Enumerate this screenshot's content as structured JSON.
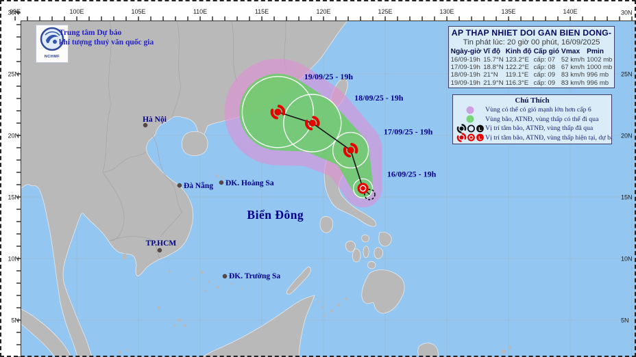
{
  "header": {
    "org_line1": "Trung tâm Dự báo",
    "org_line2": "khí tượng thuỷ văn quốc gia",
    "logo_caption": "NCHMF"
  },
  "info_box": {
    "title": "AP THAP NHIET DOI GAN BIEN DONG-",
    "issued_line": "Tin phát lúc: 20 giờ 00 phút, 16/09/2025",
    "columns": [
      "Ngày-giờ",
      "Vĩ độ",
      "Kinh độ",
      "Cấp gió",
      "Vmax",
      "Pmin"
    ],
    "rows": [
      [
        "16/09-19h",
        "15.7°N",
        "123.2°E",
        "cấp: 07",
        "52 km/h",
        "1002 mb"
      ],
      [
        "17/09-19h",
        "18.8°N",
        "122.2°E",
        "cấp: 08",
        "67 km/h",
        "1000 mb"
      ],
      [
        "18/09-19h",
        "21°N",
        "119.1°E",
        "cấp: 09",
        "83 km/h",
        "996 mb"
      ],
      [
        "19/09-19h",
        "21.9°N",
        "116.3°E",
        "cấp: 09",
        "83 km/h",
        "996 mb"
      ]
    ]
  },
  "legend": {
    "title": "Chú Thích",
    "items": [
      {
        "symbol": "purple-zone",
        "label": "Vùng có thể có gió mạnh lớn hơn cấp 6"
      },
      {
        "symbol": "green-zone",
        "label": "Vùng bão, ATNĐ, vùng thấp có thể đi qua"
      },
      {
        "symbol": "past-symbols",
        "label": "Vị trí tâm bão, ATNĐ, vùng thấp đã qua"
      },
      {
        "symbol": "current-symbols",
        "label": "Vị trí tâm bão, ATNĐ, vùng thấp hiện tại, dự báo"
      }
    ]
  },
  "map": {
    "sea_label": {
      "text": "Biển Đông",
      "lon": 116.1,
      "lat": 13.45
    },
    "places": [
      {
        "name": "Hà Nội",
        "lon": 105.56,
        "lat": 20.83
      },
      {
        "name": "Đà Nẵng",
        "lon": 108.33,
        "lat": 15.94
      },
      {
        "name": "TP.HCM",
        "lon": 106.72,
        "lat": 10.67
      },
      {
        "name": "ĐK. Hoàng Sa",
        "lon": 111.72,
        "lat": 16.17
      },
      {
        "name": "ĐK. Trường Sa",
        "lon": 112.0,
        "lat": 8.56
      }
    ],
    "axis": {
      "longitudes": [
        {
          "v": 95,
          "t": "95E"
        },
        {
          "v": 100,
          "t": "100E"
        },
        {
          "v": 105,
          "t": "105E"
        },
        {
          "v": 110,
          "t": "110E"
        },
        {
          "v": 115,
          "t": "115E"
        },
        {
          "v": 120,
          "t": "120E"
        },
        {
          "v": 125,
          "t": "125E"
        },
        {
          "v": 130,
          "t": "130E"
        },
        {
          "v": 135,
          "t": "135E"
        },
        {
          "v": 140,
          "t": "140E"
        }
      ],
      "latitudes": [
        {
          "v": 30,
          "t": "30N"
        },
        {
          "v": 25,
          "t": "25N"
        },
        {
          "v": 20,
          "t": "20N"
        },
        {
          "v": 15,
          "t": "15N"
        },
        {
          "v": 10,
          "t": "10N"
        },
        {
          "v": 5,
          "t": "5N"
        }
      ]
    },
    "storm_track": {
      "past_position": {
        "lon": 123.75,
        "lat": 15.2
      },
      "points": [
        {
          "label": "16/09/25 - 19h",
          "lon": 123.2,
          "lat": 15.7,
          "type": "current"
        },
        {
          "label": "17/09/25 - 19h",
          "lon": 122.2,
          "lat": 18.8,
          "type": "forecast"
        },
        {
          "label": "18/09/25 - 19h",
          "lon": 119.1,
          "lat": 21.0,
          "type": "forecast"
        },
        {
          "label": "19/09/25 - 19h",
          "lon": 116.3,
          "lat": 21.9,
          "type": "forecast"
        }
      ]
    }
  },
  "colors": {
    "sea": "#93c6f1",
    "land": "#b9b9b9",
    "danger_zone": "#e090d8",
    "track_zone": "#66d162",
    "track_line": "#141414",
    "storm_red": "#e60000",
    "label_navy": "#00008b",
    "box_bg": "#d9ecf8",
    "box_border": "#3a3a66"
  }
}
